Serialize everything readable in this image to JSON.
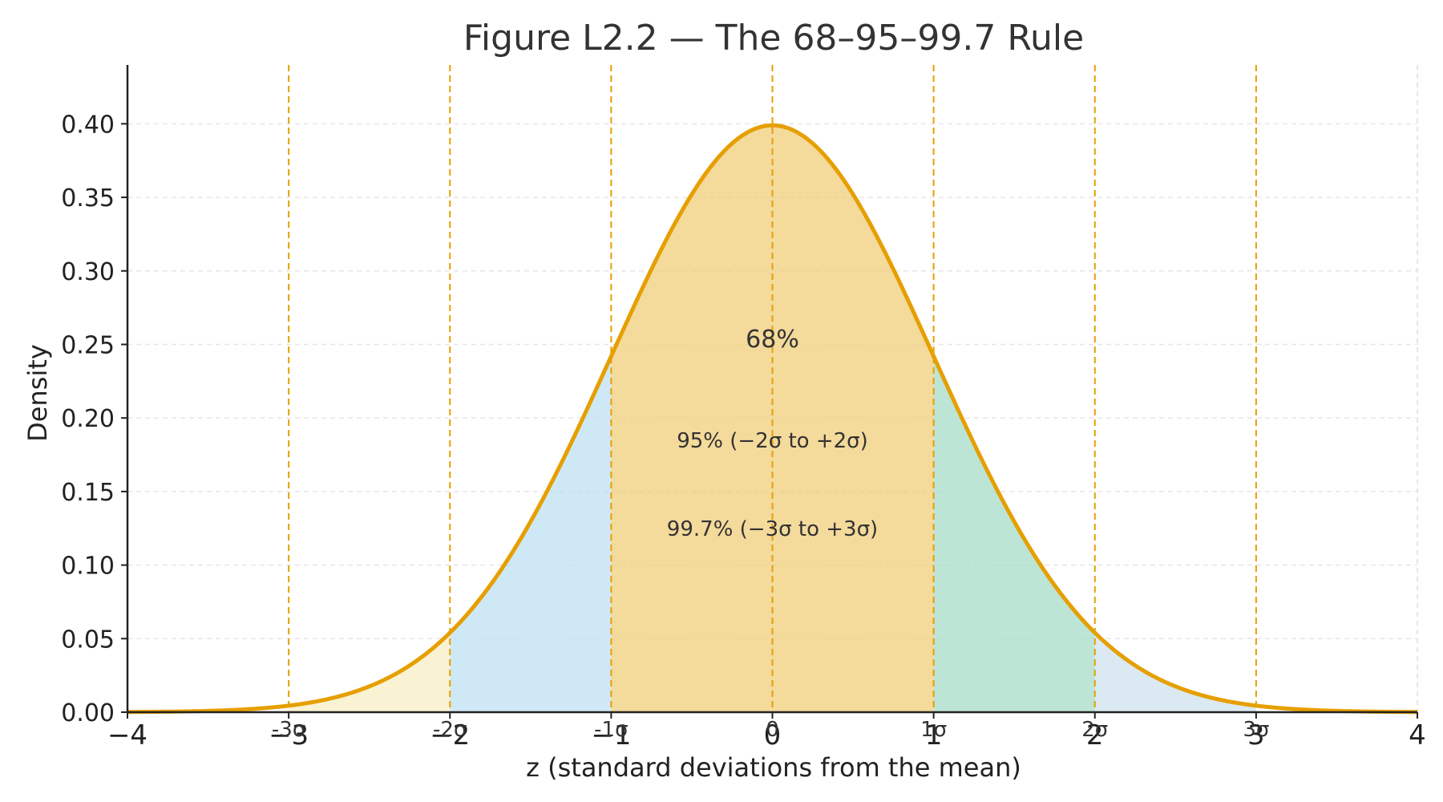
{
  "chart_data": {
    "type": "area",
    "title": "Figure L2.2 — The 68–95–99.7 Rule",
    "xlabel": "z (standard deviations from the mean)",
    "ylabel": "Density",
    "xlim": [
      -4,
      4
    ],
    "ylim": [
      0,
      0.44
    ],
    "x_ticks": [
      -4,
      -3,
      -2,
      -1,
      0,
      1,
      2,
      3,
      4
    ],
    "x_tick_labels": [
      "−4",
      "−3",
      "−2",
      "−1",
      "0",
      "1",
      "2",
      "3",
      "4"
    ],
    "y_ticks": [
      0,
      0.05,
      0.1,
      0.15,
      0.2,
      0.25,
      0.3,
      0.35,
      0.4
    ],
    "y_tick_labels": [
      "0.00",
      "0.05",
      "0.10",
      "0.15",
      "0.20",
      "0.25",
      "0.30",
      "0.35",
      "0.40"
    ],
    "curve": {
      "distribution": "standard normal",
      "mean": 0,
      "sd": 1,
      "color": "#E69F00"
    },
    "bands": [
      {
        "from": -3,
        "to": -2,
        "color": "#F7EFC4"
      },
      {
        "from": -2,
        "to": -1,
        "color": "#BFE0F2"
      },
      {
        "from": -1,
        "to": 1,
        "color": "#F0CD7A"
      },
      {
        "from": 1,
        "to": 2,
        "color": "#A5DCC8"
      },
      {
        "from": 2,
        "to": 3,
        "color": "#CFE1EE"
      }
    ],
    "sigma_lines": [
      {
        "x": -3,
        "label": "-3σ"
      },
      {
        "x": -2,
        "label": "-2σ"
      },
      {
        "x": -1,
        "label": "-1σ"
      },
      {
        "x": 0,
        "label": "0"
      },
      {
        "x": 1,
        "label": "1σ"
      },
      {
        "x": 2,
        "label": "2σ"
      },
      {
        "x": 3,
        "label": "3σ"
      }
    ],
    "sigma_line_color": "#E69F00",
    "annotations": [
      {
        "text": "68%",
        "x": 0,
        "y": 0.248
      },
      {
        "text": "95% (−2σ to +2σ)",
        "x": 0,
        "y": 0.18
      },
      {
        "text": "99.7% (−3σ to +3σ)",
        "x": 0,
        "y": 0.12
      }
    ],
    "grid": true
  }
}
